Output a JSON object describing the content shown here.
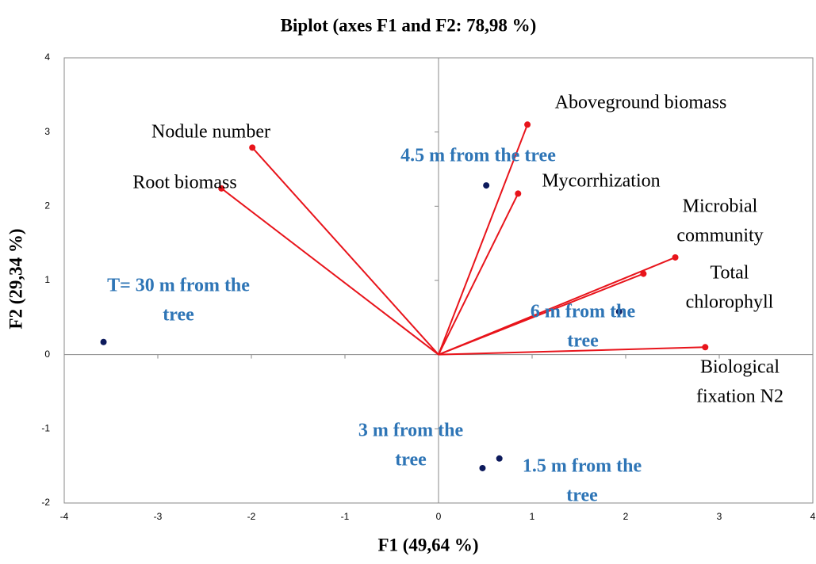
{
  "chart_data": {
    "type": "biplot",
    "title": "Biplot (axes F1 and F2: 78,98 %)",
    "x_label": "F1 (49,64 %)",
    "y_label": "F2 (29,34 %)",
    "xlim": [
      -4,
      4
    ],
    "ylim": [
      -2,
      4
    ],
    "xticks": [
      -4,
      -3,
      -2,
      -1,
      0,
      1,
      2,
      3,
      4
    ],
    "yticks": [
      -2,
      -1,
      0,
      1,
      2,
      3,
      4
    ],
    "vectors": {
      "color": "#e8141b",
      "labels": [
        [
          "Nodule number"
        ],
        [
          "Root biomass"
        ],
        [
          "Aboveground biomass"
        ],
        [
          "Mycorrhization"
        ],
        [
          "Microbial",
          "community"
        ],
        [
          "Total",
          "chlorophyll"
        ],
        [
          "Biological",
          "fixation N2"
        ]
      ],
      "x": [
        -1.99,
        -2.32,
        0.95,
        0.85,
        2.53,
        2.19,
        2.85
      ],
      "values": [
        2.79,
        2.24,
        3.1,
        2.17,
        1.31,
        1.09,
        0.1
      ]
    },
    "points": {
      "color": "#0d1a5c",
      "label_color": "#2e75b6",
      "labels": [
        [
          "T= 30 m from the",
          "tree"
        ],
        [
          "4.5 m from the tree"
        ],
        [
          "6 m from the",
          "tree"
        ],
        [
          "3 m from the",
          "tree"
        ],
        [
          "1.5 m from the",
          "tree"
        ]
      ],
      "x": [
        -3.58,
        0.51,
        1.93,
        0.47,
        0.65
      ],
      "values": [
        0.17,
        2.28,
        0.58,
        -1.53,
        -1.4
      ]
    }
  }
}
